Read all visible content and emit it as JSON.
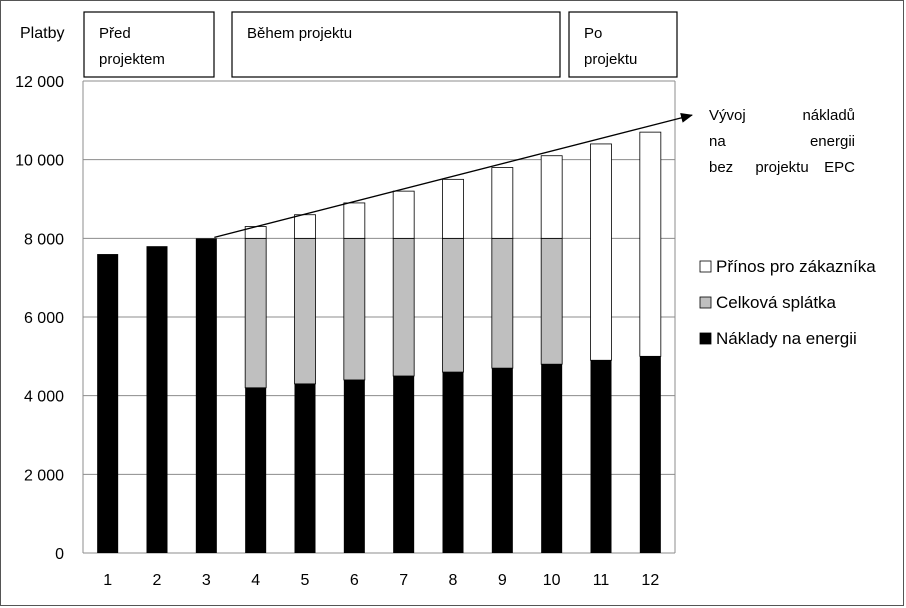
{
  "chart_data": {
    "type": "bar",
    "stacked": true,
    "ylabel": "Platby",
    "ylim": [
      0,
      12000
    ],
    "yticks": [
      0,
      2000,
      4000,
      6000,
      8000,
      10000,
      12000
    ],
    "ytick_labels": [
      "0",
      "2 000",
      "4 000",
      "6 000",
      "8 000",
      "10 000",
      "12 000"
    ],
    "categories": [
      "1",
      "2",
      "3",
      "4",
      "5",
      "6",
      "7",
      "8",
      "9",
      "10",
      "11",
      "12"
    ],
    "grid": true,
    "legend_position": "right",
    "series": [
      {
        "name": "Náklady na energii",
        "color": "#000000",
        "values": [
          7600,
          7800,
          8000,
          4200,
          4300,
          4400,
          4500,
          4600,
          4700,
          4800,
          4900,
          5000
        ]
      },
      {
        "name": "Celková splátka",
        "color": "#bfbfbf",
        "values": [
          0,
          0,
          0,
          3800,
          3700,
          3600,
          3500,
          3400,
          3300,
          3200,
          0,
          0
        ]
      },
      {
        "name": "Přínos pro zákazníka",
        "color": "#ffffff",
        "values": [
          0,
          0,
          0,
          300,
          600,
          900,
          1200,
          1500,
          1800,
          2100,
          5500,
          5700
        ]
      }
    ],
    "legend_order": [
      "Přínos pro zákazníka",
      "Celková splátka",
      "Náklady na energii"
    ],
    "phases": [
      {
        "label_lines": [
          "Před",
          "projektem"
        ]
      },
      {
        "label_lines": [
          "Během projektu"
        ]
      },
      {
        "label_lines": [
          "Po",
          "projektu"
        ]
      }
    ],
    "trend_annotation": {
      "lines": [
        [
          "Vývoj",
          "nákladů"
        ],
        [
          "na",
          "energii"
        ],
        [
          "bez",
          "projektu",
          "EPC"
        ]
      ],
      "from": {
        "x": "3",
        "y": 8000
      },
      "to_value": 10700
    }
  }
}
